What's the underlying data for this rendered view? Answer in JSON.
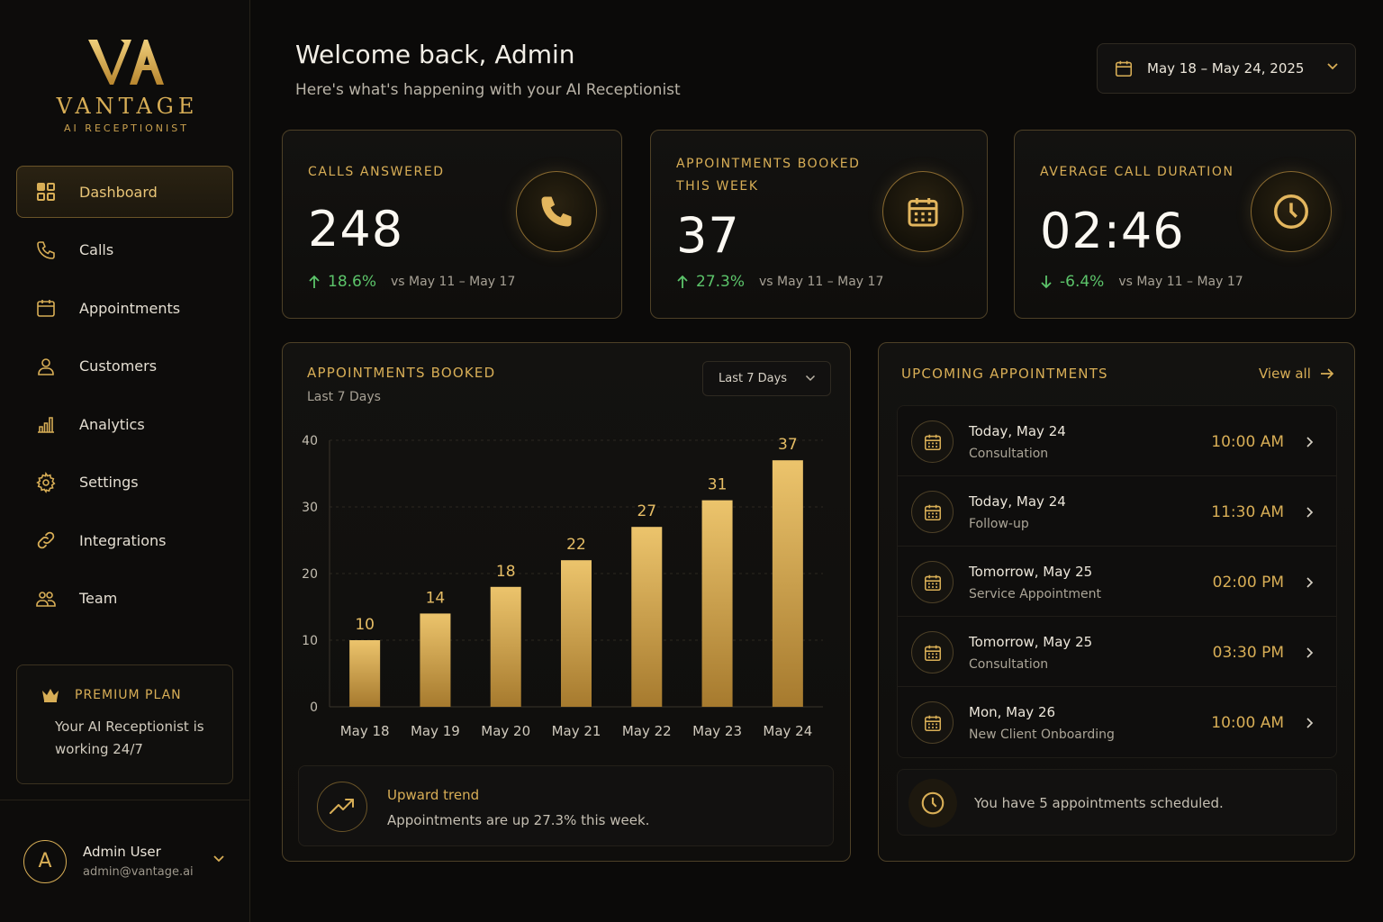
{
  "brand": {
    "monogram": "VA",
    "name": "VANTAGE",
    "tagline": "AI RECEPTIONIST",
    "gold": "#d8ae56"
  },
  "sidebar": {
    "items": [
      {
        "label": "Dashboard",
        "icon": "dashboard-grid-icon",
        "active": true
      },
      {
        "label": "Calls",
        "icon": "phone-icon",
        "active": false
      },
      {
        "label": "Appointments",
        "icon": "calendar-icon",
        "active": false
      },
      {
        "label": "Customers",
        "icon": "user-icon",
        "active": false
      },
      {
        "label": "Analytics",
        "icon": "bar-chart-icon",
        "active": false
      },
      {
        "label": "Settings",
        "icon": "gear-icon",
        "active": false
      },
      {
        "label": "Integrations",
        "icon": "link-icon",
        "active": false
      },
      {
        "label": "Team",
        "icon": "team-icon",
        "active": false
      }
    ],
    "premium": {
      "title": "PREMIUM PLAN",
      "text": "Your AI Receptionist is working 24/7",
      "icon": "crown-icon"
    },
    "user": {
      "initial": "A",
      "name": "Admin User",
      "email": "admin@vantage.ai"
    }
  },
  "header": {
    "title": "Welcome back, Admin",
    "subtitle": "Here's what's happening with your AI Receptionist",
    "date_range": "May 18 – May 24, 2025"
  },
  "kpis": [
    {
      "label": "CALLS ANSWERED",
      "value": "248",
      "change": "18.6%",
      "direction": "up",
      "comparison": "vs May 11 – May 17",
      "icon": "phone-icon"
    },
    {
      "label": "APPOINTMENTS BOOKED THIS WEEK",
      "value": "37",
      "change": "27.3%",
      "direction": "up",
      "comparison": "vs May 11 – May 17",
      "icon": "calendar-icon"
    },
    {
      "label": "AVERAGE CALL DURATION",
      "value": "02:46",
      "change": "-6.4%",
      "direction": "down",
      "comparison": "vs May 11 – May 17",
      "icon": "clock-icon"
    }
  ],
  "appointments_chart": {
    "title": "APPOINTMENTS BOOKED",
    "subtitle": "Last 7 Days",
    "range_select": "Last 7 Days",
    "trend_title": "Upward trend",
    "trend_text": "Appointments are up 27.3% this week."
  },
  "chart_data": {
    "type": "bar",
    "categories": [
      "May 18",
      "May 19",
      "May 20",
      "May 21",
      "May 22",
      "May 23",
      "May 24"
    ],
    "values": [
      10,
      14,
      18,
      22,
      27,
      31,
      37
    ],
    "title": "APPOINTMENTS BOOKED",
    "subtitle": "Last 7 Days",
    "ylim": [
      0,
      40
    ],
    "yticks": [
      0,
      10,
      20,
      30,
      40
    ],
    "grid": true,
    "data_labels": true,
    "bar_color": "#d8ae56"
  },
  "upcoming": {
    "title": "UPCOMING APPOINTMENTS",
    "view_all": "View all",
    "items": [
      {
        "date": "Today, May 24",
        "type": "Consultation",
        "time": "10:00 AM"
      },
      {
        "date": "Today, May 24",
        "type": "Follow-up",
        "time": "11:30 AM"
      },
      {
        "date": "Tomorrow, May 25",
        "type": "Service Appointment",
        "time": "02:00 PM"
      },
      {
        "date": "Tomorrow, May 25",
        "type": "Consultation",
        "time": "03:30 PM"
      },
      {
        "date": "Mon, May 26",
        "type": "New Client Onboarding",
        "time": "10:00 AM"
      }
    ],
    "summary": "You have 5 appointments scheduled."
  }
}
